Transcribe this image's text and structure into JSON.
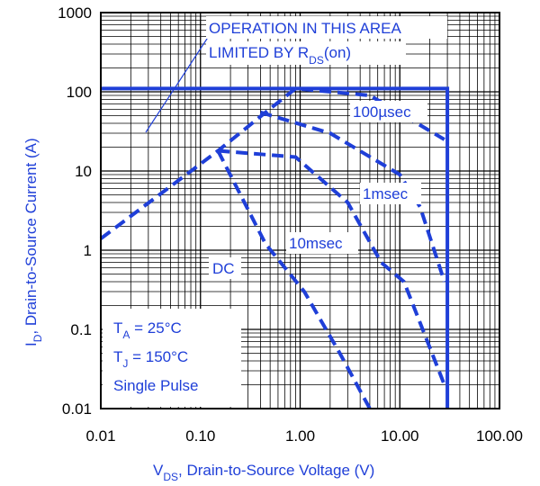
{
  "colors": {
    "accent": "#1f3fd8",
    "grid": "#000000",
    "background": "#ffffff"
  },
  "chart_data": {
    "type": "line",
    "x_scale": "log",
    "y_scale": "log",
    "xlim": [
      0.01,
      100
    ],
    "ylim": [
      0.01,
      1000
    ],
    "grid": true,
    "x_ticks": [
      "0.01",
      "0.10",
      "1.00",
      "10.00",
      "100.00"
    ],
    "y_ticks": [
      "0.01",
      "0.1",
      "1",
      "10",
      "100",
      "1000"
    ],
    "xlabel": {
      "main": "V",
      "sub": "DS",
      "rest": ", Drain-to-Source Voltage (V)"
    },
    "ylabel": {
      "main": "I",
      "sub": "D",
      "rest": ",  Drain-to-Source Current (A)"
    },
    "annotation": {
      "line1": "OPERATION IN THIS AREA",
      "line2_prefix": "LIMITED BY R",
      "line2_sub": "DS",
      "line2_suffix": "(on)"
    },
    "conditions": {
      "ta_main": "T",
      "ta_sub": "A",
      "ta_rest": " = 25°C",
      "tj_main": "T",
      "tj_sub": "J",
      "tj_rest": " = 150°C",
      "pulse": "Single Pulse"
    },
    "limit_boundary": {
      "current_limit": 110,
      "voltage_limit": 30
    },
    "series": [
      {
        "name": "100µsec",
        "style": "dashed",
        "x": [
          0.01,
          0.15,
          0.45,
          0.9,
          5.0,
          28.0
        ],
        "y": [
          1.4,
          18,
          55,
          110,
          90,
          25
        ]
      },
      {
        "name": "1msec",
        "style": "dashed",
        "x": [
          0.4,
          2.0,
          10.0,
          16.0,
          28.0
        ],
        "y": [
          55,
          30,
          9,
          3.5,
          0.4
        ]
      },
      {
        "name": "10msec",
        "style": "dashed",
        "x": [
          0.15,
          0.9,
          3.0,
          6.5,
          11.0,
          28.0
        ],
        "y": [
          18,
          15,
          4,
          0.7,
          0.4,
          0.02
        ]
      },
      {
        "name": "DC",
        "style": "dashed",
        "x": [
          0.15,
          0.45,
          1.1,
          2.5,
          5.0
        ],
        "y": [
          18,
          1.2,
          0.3,
          0.05,
          0.01
        ]
      }
    ],
    "series_labels": [
      "100µsec",
      "1msec",
      "10msec",
      "DC"
    ]
  }
}
